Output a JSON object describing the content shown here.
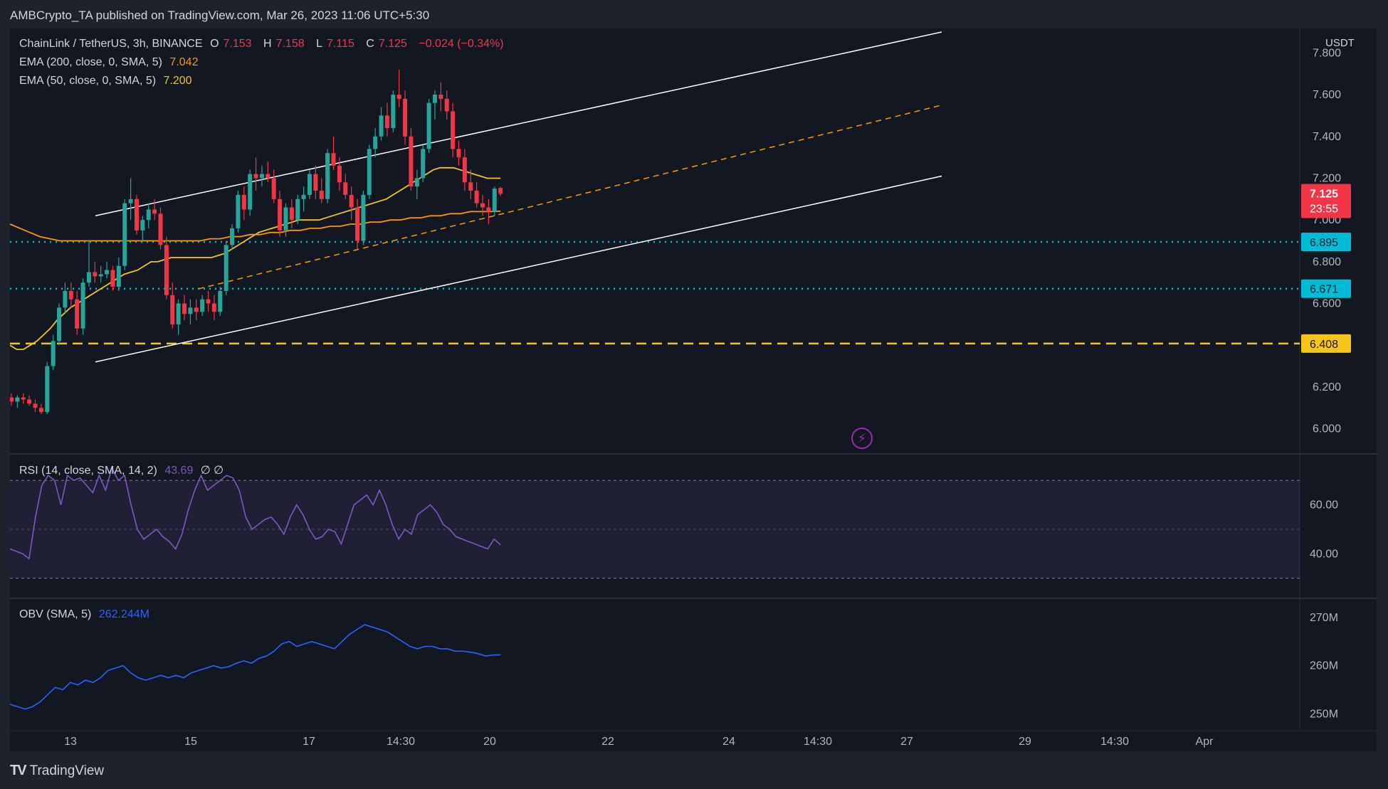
{
  "header": {
    "publisher_line": "AMBCrypto_TA published on TradingView.com, Mar 26, 2023 11:06 UTC+5:30"
  },
  "legend": {
    "symbol": "ChainLink / TetherUS, 3h, BINANCE",
    "o_label": "O",
    "o": "7.153",
    "h_label": "H",
    "h": "7.158",
    "l_label": "L",
    "l": "7.115",
    "c_label": "C",
    "c": "7.125",
    "change": "−0.024 (−0.34%)",
    "ema200_label": "EMA (200, close, 0, SMA, 5)",
    "ema200_value": "7.042",
    "ema50_label": "EMA (50, close, 0, SMA, 5)",
    "ema50_value": "7.200",
    "rsi_label": "RSI (14, close, SMA, 14, 2)",
    "rsi_value": "43.69",
    "rsi_extra": "∅  ∅",
    "obv_label": "OBV (SMA, 5)",
    "obv_value": "262.244M"
  },
  "price_axis": {
    "currency": "USDT",
    "ticks": [
      "7.800",
      "7.600",
      "7.400",
      "7.200",
      "7.000",
      "6.800",
      "6.600",
      "6.400",
      "6.200",
      "6.000"
    ],
    "current_price": "7.125",
    "countdown": "23:55",
    "level_labels": [
      "6.895",
      "6.671",
      "6.408"
    ]
  },
  "rsi_axis": {
    "ticks": [
      "60.00",
      "40.00"
    ]
  },
  "obv_axis": {
    "ticks": [
      "270M",
      "260M",
      "250M"
    ]
  },
  "time_axis": {
    "ticks": [
      "13",
      "15",
      "17",
      "14:30",
      "20",
      "22",
      "24",
      "14:30",
      "27",
      "29",
      "14:30",
      "Apr"
    ]
  },
  "footer": {
    "brand": "TradingView"
  },
  "colors": {
    "up": "#26a69a",
    "down": "#f23645",
    "ema50": "#f5c518",
    "ema200": "#ff9800",
    "cyan_level": "#00bcd4",
    "yellow_level": "#f5c518",
    "rsi": "#7e57c2",
    "obv": "#2962ff",
    "channel": "#ffffff"
  },
  "chart_data": {
    "type": "candlestick",
    "title": "ChainLink / TetherUS, 3h, BINANCE",
    "interval": "3h",
    "price_range": [
      5.9,
      7.9
    ],
    "horizontal_levels": [
      {
        "price": 6.895,
        "style": "dotted",
        "color": "cyan"
      },
      {
        "price": 6.671,
        "style": "dotted",
        "color": "cyan"
      },
      {
        "price": 6.408,
        "style": "dashed",
        "color": "yellow"
      }
    ],
    "channel": {
      "upper": [
        [
          0,
          7.02
        ],
        [
          82,
          7.9
        ]
      ],
      "lower": [
        [
          0,
          6.32
        ],
        [
          82,
          7.21
        ]
      ],
      "median": [
        [
          10,
          6.67
        ],
        [
          82,
          7.55
        ]
      ]
    },
    "candles": [
      [
        6.15,
        6.17,
        6.11,
        6.13
      ],
      [
        6.13,
        6.16,
        6.1,
        6.15
      ],
      [
        6.15,
        6.17,
        6.12,
        6.14
      ],
      [
        6.14,
        6.16,
        6.11,
        6.12
      ],
      [
        6.12,
        6.14,
        6.08,
        6.1
      ],
      [
        6.1,
        6.12,
        6.07,
        6.08
      ],
      [
        6.08,
        6.32,
        6.07,
        6.3
      ],
      [
        6.3,
        6.45,
        6.28,
        6.42
      ],
      [
        6.42,
        6.6,
        6.4,
        6.58
      ],
      [
        6.58,
        6.7,
        6.55,
        6.66
      ],
      [
        6.66,
        6.7,
        6.58,
        6.62
      ],
      [
        6.62,
        6.66,
        6.45,
        6.48
      ],
      [
        6.48,
        6.72,
        6.45,
        6.7
      ],
      [
        6.7,
        6.9,
        6.68,
        6.75
      ],
      [
        6.75,
        6.8,
        6.7,
        6.73
      ],
      [
        6.73,
        6.78,
        6.7,
        6.74
      ],
      [
        6.74,
        6.8,
        6.72,
        6.76
      ],
      [
        6.76,
        6.78,
        6.66,
        6.68
      ],
      [
        6.68,
        6.82,
        6.66,
        6.78
      ],
      [
        6.78,
        7.1,
        6.76,
        7.08
      ],
      [
        7.08,
        7.2,
        7.0,
        7.1
      ],
      [
        7.1,
        7.12,
        6.93,
        6.95
      ],
      [
        6.95,
        7.02,
        6.9,
        7.0
      ],
      [
        7.0,
        7.08,
        6.96,
        7.05
      ],
      [
        7.05,
        7.1,
        7.0,
        7.03
      ],
      [
        7.03,
        7.06,
        6.86,
        6.88
      ],
      [
        6.88,
        6.92,
        6.62,
        6.64
      ],
      [
        6.64,
        6.7,
        6.48,
        6.5
      ],
      [
        6.5,
        6.62,
        6.45,
        6.6
      ],
      [
        6.6,
        6.64,
        6.52,
        6.55
      ],
      [
        6.55,
        6.62,
        6.5,
        6.58
      ],
      [
        6.58,
        6.62,
        6.52,
        6.56
      ],
      [
        6.56,
        6.64,
        6.54,
        6.62
      ],
      [
        6.62,
        6.66,
        6.56,
        6.6
      ],
      [
        6.6,
        6.64,
        6.52,
        6.56
      ],
      [
        6.56,
        6.68,
        6.54,
        6.66
      ],
      [
        6.66,
        6.9,
        6.64,
        6.88
      ],
      [
        6.88,
        6.98,
        6.86,
        6.96
      ],
      [
        6.96,
        7.14,
        6.94,
        7.12
      ],
      [
        7.12,
        7.16,
        7.0,
        7.05
      ],
      [
        7.05,
        7.24,
        7.02,
        7.22
      ],
      [
        7.22,
        7.3,
        7.14,
        7.2
      ],
      [
        7.2,
        7.26,
        7.16,
        7.22
      ],
      [
        7.22,
        7.28,
        7.18,
        7.2
      ],
      [
        7.2,
        7.24,
        7.08,
        7.1
      ],
      [
        7.1,
        7.14,
        6.92,
        6.95
      ],
      [
        6.95,
        7.08,
        6.92,
        7.06
      ],
      [
        7.06,
        7.1,
        6.96,
        7.0
      ],
      [
        7.0,
        7.12,
        6.98,
        7.1
      ],
      [
        7.1,
        7.16,
        7.04,
        7.12
      ],
      [
        7.12,
        7.24,
        7.1,
        7.22
      ],
      [
        7.22,
        7.26,
        7.1,
        7.14
      ],
      [
        7.14,
        7.2,
        7.08,
        7.1
      ],
      [
        7.1,
        7.34,
        7.08,
        7.32
      ],
      [
        7.32,
        7.4,
        7.24,
        7.26
      ],
      [
        7.26,
        7.3,
        7.14,
        7.18
      ],
      [
        7.18,
        7.22,
        7.1,
        7.12
      ],
      [
        7.12,
        7.16,
        7.0,
        7.06
      ],
      [
        7.06,
        7.1,
        6.86,
        6.9
      ],
      [
        6.9,
        7.14,
        6.88,
        7.12
      ],
      [
        7.12,
        7.36,
        7.1,
        7.34
      ],
      [
        7.34,
        7.44,
        7.3,
        7.4
      ],
      [
        7.4,
        7.54,
        7.38,
        7.5
      ],
      [
        7.5,
        7.56,
        7.4,
        7.44
      ],
      [
        7.44,
        7.62,
        7.42,
        7.6
      ],
      [
        7.6,
        7.72,
        7.54,
        7.58
      ],
      [
        7.58,
        7.62,
        7.36,
        7.4
      ],
      [
        7.4,
        7.44,
        7.14,
        7.16
      ],
      [
        7.16,
        7.24,
        7.1,
        7.2
      ],
      [
        7.2,
        7.36,
        7.18,
        7.34
      ],
      [
        7.34,
        7.58,
        7.32,
        7.56
      ],
      [
        7.56,
        7.62,
        7.48,
        7.6
      ],
      [
        7.6,
        7.66,
        7.52,
        7.58
      ],
      [
        7.58,
        7.62,
        7.48,
        7.52
      ],
      [
        7.52,
        7.56,
        7.3,
        7.34
      ],
      [
        7.34,
        7.38,
        7.26,
        7.3
      ],
      [
        7.3,
        7.34,
        7.14,
        7.18
      ],
      [
        7.18,
        7.24,
        7.1,
        7.14
      ],
      [
        7.14,
        7.18,
        7.06,
        7.08
      ],
      [
        7.08,
        7.12,
        7.02,
        7.06
      ],
      [
        7.06,
        7.1,
        6.98,
        7.04
      ],
      [
        7.04,
        7.16,
        7.02,
        7.15
      ],
      [
        7.153,
        7.158,
        7.115,
        7.125
      ]
    ],
    "ema50": [
      6.4,
      6.38,
      6.38,
      6.4,
      6.42,
      6.45,
      6.48,
      6.52,
      6.55,
      6.58,
      6.6,
      6.62,
      6.64,
      6.66,
      6.68,
      6.7,
      6.72,
      6.74,
      6.75,
      6.76,
      6.78,
      6.8,
      6.8,
      6.81,
      6.82,
      6.82,
      6.82,
      6.82,
      6.82,
      6.82,
      6.82,
      6.83,
      6.84,
      6.86,
      6.88,
      6.9,
      6.92,
      6.94,
      6.95,
      6.96,
      6.97,
      6.98,
      6.99,
      7.0,
      7.0,
      7.0,
      7.0,
      7.01,
      7.02,
      7.03,
      7.04,
      7.05,
      7.06,
      7.07,
      7.08,
      7.09,
      7.1,
      7.12,
      7.14,
      7.16,
      7.18,
      7.2,
      7.22,
      7.24,
      7.25,
      7.25,
      7.25,
      7.24,
      7.23,
      7.22,
      7.21,
      7.2,
      7.2,
      7.2
    ],
    "ema200": [
      6.98,
      6.96,
      6.94,
      6.92,
      6.91,
      6.9,
      6.9,
      6.9,
      6.9,
      6.9,
      6.9,
      6.9,
      6.9,
      6.9,
      6.9,
      6.9,
      6.9,
      6.9,
      6.9,
      6.9,
      6.91,
      6.91,
      6.92,
      6.92,
      6.93,
      6.93,
      6.94,
      6.94,
      6.95,
      6.95,
      6.96,
      6.96,
      6.97,
      6.97,
      6.98,
      6.98,
      6.99,
      6.99,
      7.0,
      7.0,
      7.01,
      7.01,
      7.02,
      7.02,
      7.03,
      7.03,
      7.04,
      7.04,
      7.04,
      7.042
    ],
    "rsi_range": [
      25,
      75
    ],
    "rsi_band": [
      30,
      70
    ],
    "rsi": [
      42,
      41,
      40,
      38,
      55,
      68,
      72,
      70,
      60,
      72,
      70,
      71,
      68,
      65,
      72,
      66,
      75,
      70,
      72,
      60,
      50,
      46,
      48,
      50,
      47,
      45,
      42,
      48,
      58,
      66,
      72,
      66,
      68,
      70,
      72,
      71,
      66,
      55,
      50,
      52,
      54,
      55,
      52,
      48,
      55,
      60,
      56,
      50,
      46,
      47,
      50,
      49,
      44,
      52,
      60,
      62,
      64,
      60,
      66,
      60,
      52,
      46,
      50,
      48,
      56,
      58,
      60,
      57,
      52,
      50,
      47,
      46,
      45,
      44,
      43,
      42,
      46,
      43.69
    ],
    "obv_range": [
      248,
      271
    ],
    "obv": [
      252,
      251.5,
      251,
      251.5,
      252.5,
      254,
      255.5,
      255,
      256.5,
      256,
      257,
      256.5,
      257.5,
      259,
      259.5,
      260,
      258.5,
      257.5,
      257,
      257.5,
      258,
      257.5,
      258,
      257.5,
      258.5,
      259,
      259.5,
      260,
      259.5,
      259.8,
      260.5,
      261,
      260.5,
      261.5,
      262,
      263,
      264.5,
      265,
      264,
      264.5,
      265,
      264.5,
      264,
      263.5,
      265,
      266.5,
      267.5,
      268.5,
      268,
      267.5,
      267,
      266,
      265,
      264,
      263.5,
      264,
      264,
      263.5,
      263.5,
      263,
      263,
      262.8,
      262.5,
      262,
      262.2,
      262.244
    ]
  }
}
